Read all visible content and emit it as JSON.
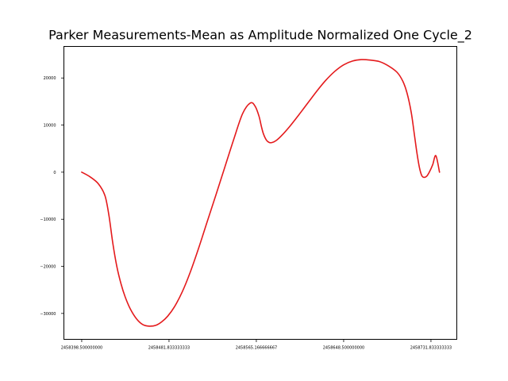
{
  "chart_data": {
    "type": "line",
    "title": "Parker Measurements-Mean as Amplitude Normalized One Cycle_2",
    "xlabel": "",
    "ylabel": "",
    "xlim": [
      2458381.5,
      2458756.5
    ],
    "ylim": [
      -35500,
      26700
    ],
    "grid": false,
    "legend": "none",
    "x_ticks": [
      2458398.5,
      2458481.833333333,
      2458565.166666667,
      2458648.5,
      2458731.833333333
    ],
    "x_tick_labels": [
      "2458398.500000000",
      "2458481.833333333",
      "2458565.166666667",
      "2458648.500000000",
      "2458731.833333333"
    ],
    "y_ticks": [
      -30000,
      -20000,
      -10000,
      0,
      10000,
      20000
    ],
    "y_tick_labels": [
      "−30000",
      "−20000",
      "−10000",
      "0",
      "10000",
      "20000"
    ],
    "series": [
      {
        "color": "#e41a1c",
        "x": [
          2458398.5,
          2458406.5,
          2458414.5,
          2458420.7,
          2458424.5,
          2458428.2,
          2458432.0,
          2458436.0,
          2458440.0,
          2458445.0,
          2458451.0,
          2458457.0,
          2458463.0,
          2458469.5,
          2458474.8,
          2458480.5,
          2458487.0,
          2458494.5,
          2458502.0,
          2458510.0,
          2458518.0,
          2458526.5,
          2458535.0,
          2458543.5,
          2458552.0,
          2458559.5,
          2458564.0,
          2458567.7,
          2458570.0,
          2458572.0,
          2458574.8,
          2458577.5,
          2458580.3,
          2458584.0,
          2458589.0,
          2458597.0,
          2458605.5,
          2458614.0,
          2458622.5,
          2458631.0,
          2458640.0,
          2458648.5,
          2458657.0,
          2458665.5,
          2458674.0,
          2458682.5,
          2458691.0,
          2458699.5,
          2458705.0,
          2458709.0,
          2458713.0,
          2458716.0,
          2458718.5,
          2458720.8,
          2458723.0,
          2458725.2,
          2458728.0,
          2458730.5,
          2458733.5,
          2458736.5,
          2458740.0
        ],
        "y": [
          0,
          -1000,
          -2500,
          -5000,
          -9200,
          -15100,
          -20000,
          -23700,
          -26500,
          -29100,
          -31200,
          -32400,
          -32700,
          -32500,
          -31800,
          -30600,
          -28600,
          -25400,
          -21300,
          -16200,
          -10700,
          -4900,
          1000,
          6900,
          12400,
          14700,
          14000,
          11900,
          9700,
          8100,
          6800,
          6300,
          6300,
          6700,
          7700,
          9700,
          12100,
          14600,
          17100,
          19400,
          21400,
          22800,
          23600,
          23900,
          23800,
          23500,
          22600,
          21200,
          19300,
          16800,
          12700,
          8000,
          4000,
          1000,
          -700,
          -1100,
          -800,
          100,
          1600,
          3500,
          0
        ]
      }
    ]
  }
}
